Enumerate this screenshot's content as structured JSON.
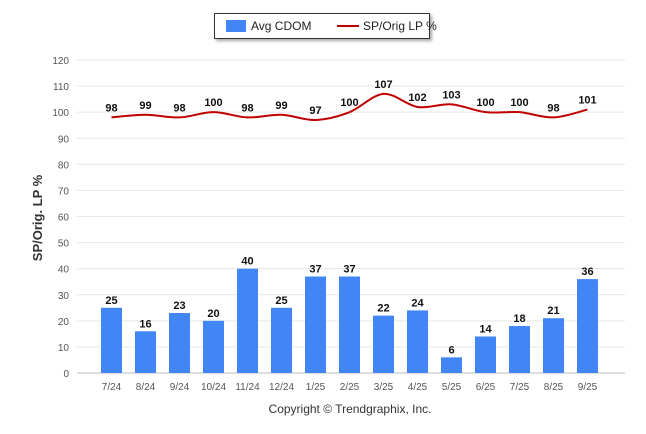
{
  "chart_data": {
    "type": "bar+line",
    "categories": [
      "7/24",
      "8/24",
      "9/24",
      "10/24",
      "11/24",
      "12/24",
      "1/25",
      "2/25",
      "3/25",
      "4/25",
      "5/25",
      "6/25",
      "7/25",
      "8/25",
      "9/25"
    ],
    "series": [
      {
        "name": "Avg CDOM",
        "type": "bar",
        "color": "#4285f4",
        "values": [
          25,
          16,
          23,
          20,
          40,
          25,
          37,
          37,
          22,
          24,
          6,
          14,
          18,
          21,
          36
        ]
      },
      {
        "name": "SP/Orig LP %",
        "type": "line",
        "color": "#c00000",
        "values": [
          98,
          99,
          98,
          100,
          98,
          99,
          97,
          100,
          107,
          102,
          103,
          100,
          100,
          98,
          101
        ]
      }
    ],
    "ylabel": "SP/Orig. LP %",
    "ylim": [
      0,
      120
    ],
    "yticks": [
      0,
      10,
      20,
      30,
      40,
      50,
      60,
      70,
      80,
      90,
      100,
      110,
      120
    ],
    "legend": "top-center",
    "grid": true
  },
  "footer": {
    "copyright": "Copyright © Trendgraphix, Inc."
  }
}
